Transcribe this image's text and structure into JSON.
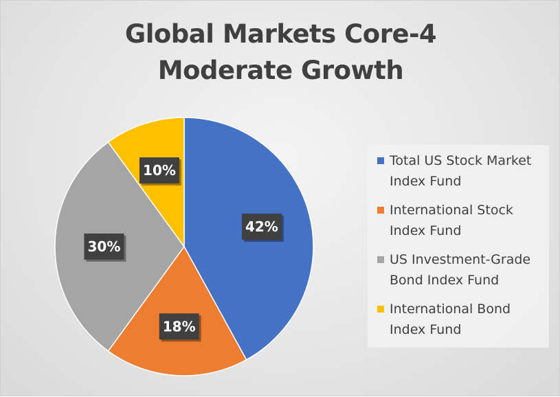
{
  "chart_data": {
    "type": "pie",
    "title": "Global Markets Core-4\nModerate Growth",
    "categories": [
      "Total US Stock Market Index Fund",
      "International Stock Index Fund",
      "US Investment-Grade Bond Index Fund",
      "International Bond Index Fund"
    ],
    "values": [
      42,
      18,
      30,
      10
    ],
    "data_labels": [
      "42%",
      "18%",
      "30%",
      "10%"
    ],
    "colors": [
      "#4472c4",
      "#ed7d31",
      "#a5a5a5",
      "#ffc000"
    ],
    "legend_position": "right",
    "legend_entries": [
      "Total US Stock Market\nIndex Fund",
      "International Stock\nIndex Fund",
      "US Investment-Grade\nBond Index Fund",
      "International Bond\nIndex Fund"
    ]
  }
}
